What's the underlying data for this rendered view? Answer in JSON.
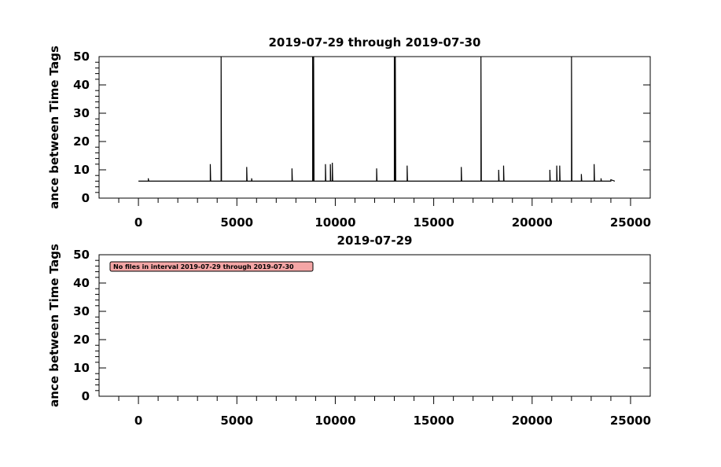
{
  "chart_data": [
    {
      "type": "line",
      "title": "2019-07-29 through 2019-07-30",
      "ylabel": "ance between Time Tags",
      "xlim": [
        -2000,
        26000
      ],
      "ylim": [
        0,
        50
      ],
      "xticks": [
        0,
        5000,
        10000,
        15000,
        20000,
        25000
      ],
      "yticks": [
        0,
        10,
        20,
        30,
        40,
        50
      ],
      "xminorticks": [
        -1000,
        1000,
        2000,
        3000,
        4000,
        6000,
        7000,
        8000,
        9000,
        11000,
        12000,
        13000,
        14000,
        16000,
        17000,
        18000,
        19000,
        21000,
        22000,
        23000,
        24000
      ],
      "yminorticks": [
        2,
        4,
        6,
        8,
        12,
        14,
        16,
        18,
        22,
        24,
        26,
        28,
        32,
        34,
        36,
        38,
        42,
        44,
        46,
        48
      ],
      "series": [
        {
          "color": "#000000",
          "x": [
            0,
            500,
            500,
            520,
            3650,
            3650,
            3670,
            4200,
            4200,
            4220,
            5500,
            5500,
            5520,
            5750,
            5750,
            5770,
            7800,
            7800,
            7820,
            8850,
            8850,
            8870,
            8900,
            8900,
            8920,
            9500,
            9500,
            9520,
            9750,
            9750,
            9770,
            9850,
            9850,
            9870,
            12100,
            12100,
            12120,
            13000,
            13000,
            13020,
            13050,
            13050,
            13070,
            13650,
            13650,
            13670,
            16400,
            16400,
            16420,
            17400,
            17400,
            17420,
            18300,
            18300,
            18320,
            18550,
            18550,
            18570,
            20900,
            20900,
            20920,
            21250,
            21250,
            21270,
            21400,
            21400,
            21420,
            22000,
            22000,
            22020,
            22500,
            22500,
            22520,
            23150,
            23150,
            23170,
            23500,
            23500,
            23520,
            24000,
            24000,
            24200
          ],
          "values": [
            6,
            6,
            7,
            6,
            6,
            12,
            6,
            6,
            50,
            6,
            6,
            11,
            6,
            6,
            7,
            6,
            6,
            10.5,
            6,
            6,
            50,
            6,
            6,
            50,
            6,
            6,
            12,
            6,
            6,
            12,
            6,
            6,
            12.5,
            6,
            6,
            10.5,
            6,
            6,
            50,
            6,
            6,
            50,
            6,
            6,
            11.5,
            6,
            6,
            11,
            6,
            6,
            50,
            6,
            6,
            10,
            6,
            6,
            11.5,
            6,
            6,
            10,
            6,
            6,
            11.5,
            6,
            6,
            11.5,
            6,
            6,
            50,
            6,
            6,
            8.5,
            6,
            6,
            12,
            6,
            6,
            7,
            6,
            6,
            6.5,
            6
          ]
        }
      ]
    },
    {
      "type": "line",
      "title": "2019-07-29",
      "ylabel": "ance between Time Tags",
      "annotation": "No files in interval 2019-07-29 through 2019-07-30",
      "xlim": [
        -2000,
        26000
      ],
      "ylim": [
        0,
        50
      ],
      "xticks": [
        0,
        5000,
        10000,
        15000,
        20000,
        25000
      ],
      "yticks": [
        0,
        10,
        20,
        30,
        40,
        50
      ],
      "xminorticks": [
        -1000,
        1000,
        2000,
        3000,
        4000,
        6000,
        7000,
        8000,
        9000,
        11000,
        12000,
        13000,
        14000,
        16000,
        17000,
        18000,
        19000,
        21000,
        22000,
        23000,
        24000
      ],
      "yminorticks": [
        2,
        4,
        6,
        8,
        12,
        14,
        16,
        18,
        22,
        24,
        26,
        28,
        32,
        34,
        36,
        38,
        42,
        44,
        46,
        48
      ],
      "series": []
    }
  ]
}
